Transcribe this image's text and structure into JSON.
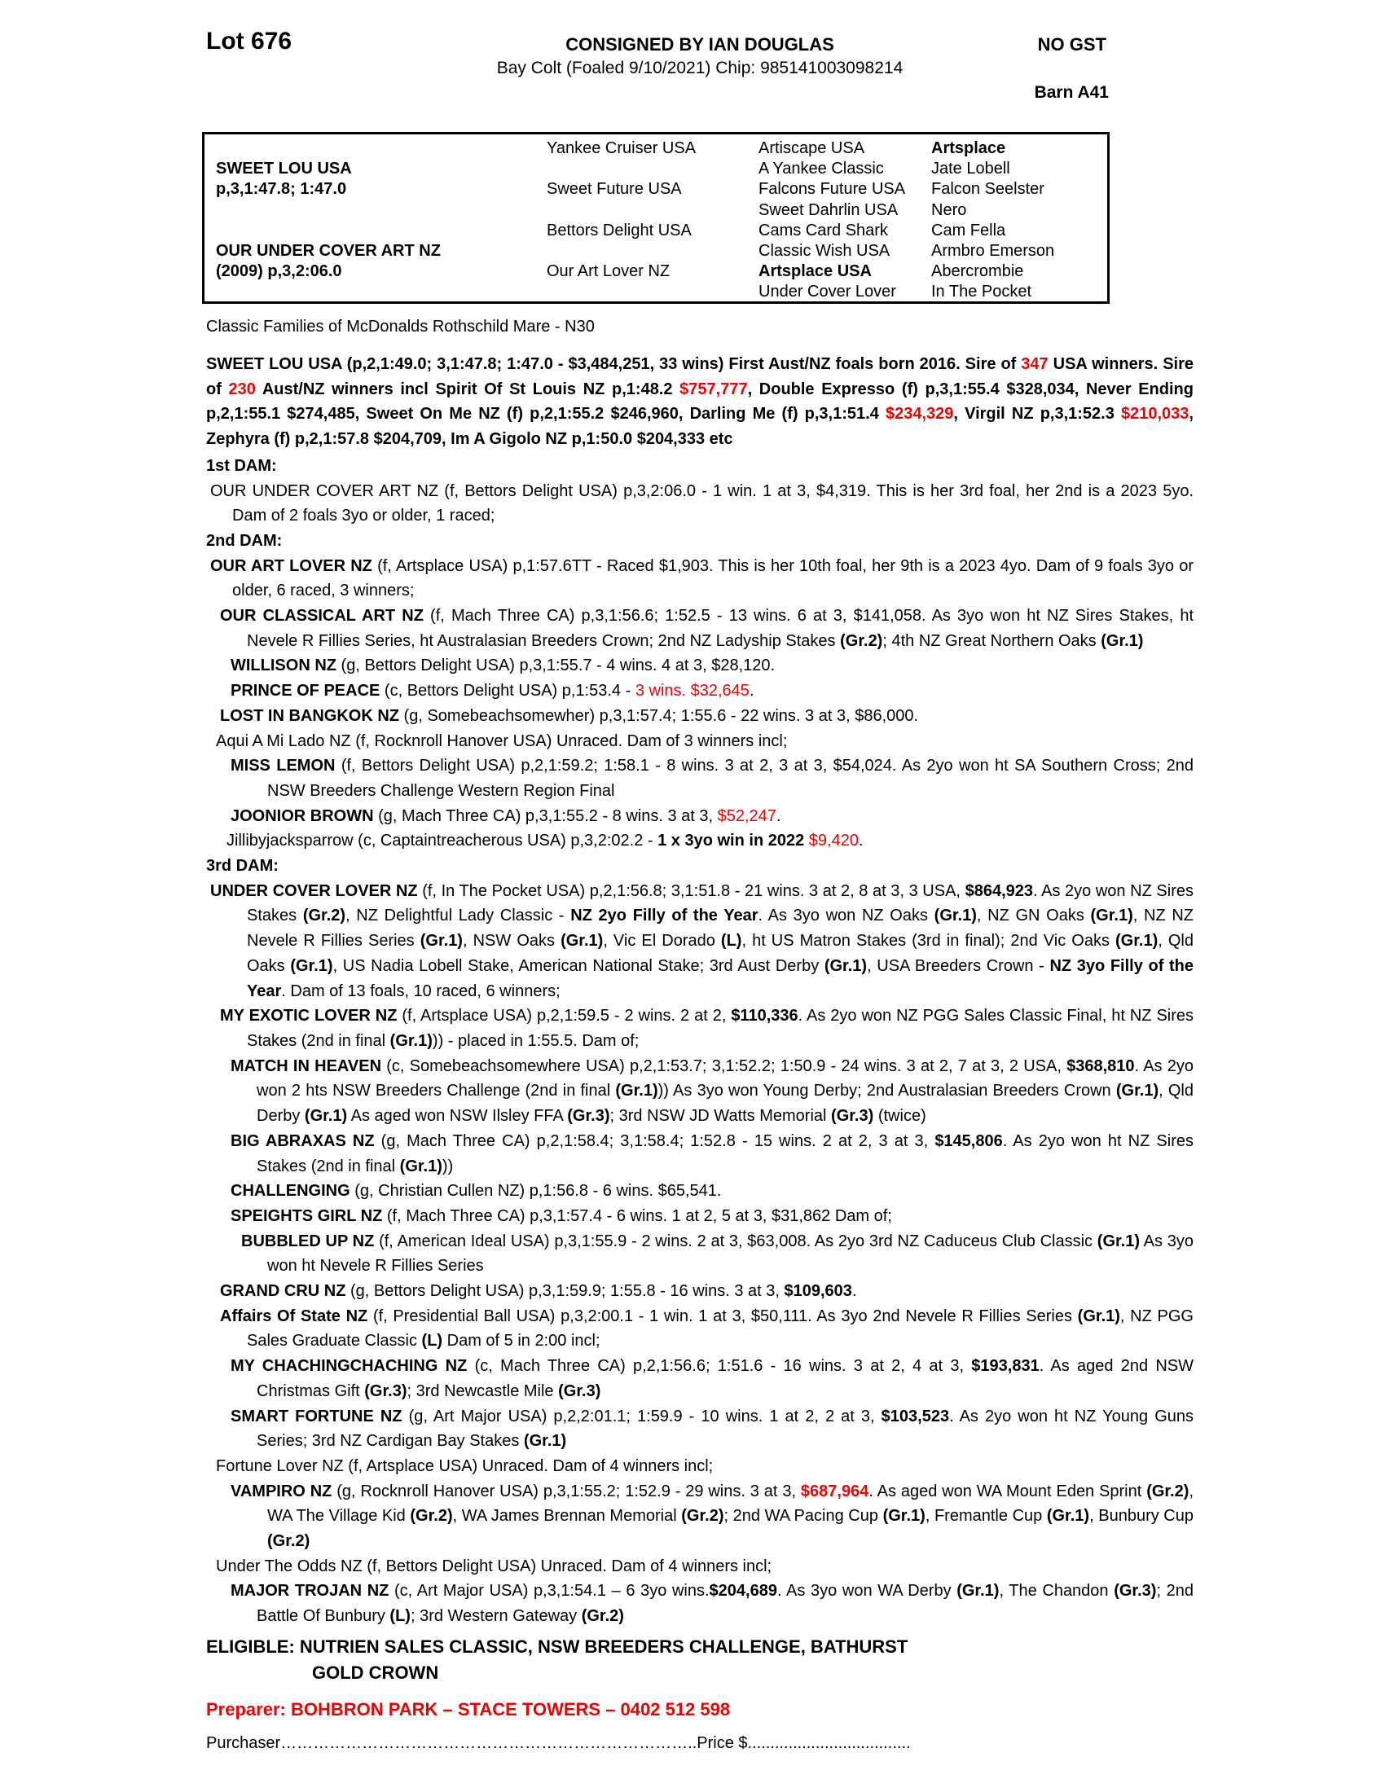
{
  "header": {
    "lot": "Lot 676",
    "consigned": "CONSIGNED BY IAN DOUGLAS",
    "no_gst": "NO GST",
    "foaling": "Bay Colt (Foaled 9/10/2021) Chip: 985141003098214",
    "barn": "Barn A41"
  },
  "pedigree_table": {
    "rows": [
      [
        {
          "t": ""
        },
        {
          "t": "Yankee Cruiser USA"
        },
        {
          "t": "Artiscape USA"
        },
        {
          "t": "Artsplace",
          "b": true
        }
      ],
      [
        {
          "t": "SWEET LOU USA",
          "b": true
        },
        {
          "t": ""
        },
        {
          "t": "A Yankee Classic"
        },
        {
          "t": "Jate Lobell"
        }
      ],
      [
        {
          "t": "p,3,1:47.8; 1:47.0",
          "b": true
        },
        {
          "t": "Sweet Future USA"
        },
        {
          "t": "Falcons Future USA"
        },
        {
          "t": "Falcon Seelster"
        }
      ],
      [
        {
          "t": ""
        },
        {
          "t": ""
        },
        {
          "t": "Sweet Dahrlin USA"
        },
        {
          "t": "Nero"
        }
      ],
      [
        {
          "t": ""
        },
        {
          "t": "Bettors Delight USA"
        },
        {
          "t": "Cams Card Shark"
        },
        {
          "t": "Cam Fella"
        }
      ],
      [
        {
          "t": "OUR UNDER COVER ART NZ",
          "b": true
        },
        {
          "t": ""
        },
        {
          "t": "Classic Wish USA"
        },
        {
          "t": "Armbro Emerson"
        }
      ],
      [
        {
          "t": "(2009) p,3,2:06.0",
          "b": true
        },
        {
          "t": "Our Art Lover NZ"
        },
        {
          "t": "Artsplace USA",
          "b": true
        },
        {
          "t": "Abercrombie"
        }
      ],
      [
        {
          "t": ""
        },
        {
          "t": ""
        },
        {
          "t": "Under Cover Lover"
        },
        {
          "t": "In The Pocket"
        }
      ]
    ]
  },
  "family_note": "Classic Families of McDonalds Rothschild Mare - N30",
  "paragraphs": [
    {
      "name": "sweet-lou-summary",
      "ind": 0,
      "hang": 0,
      "justify": true,
      "gap": 15,
      "runs": [
        {
          "t": "SWEET LOU USA (p,2,1:49.0; 3,1:47.8; 1:47.0 - $3,484,251, 33 wins) First Aust/NZ foals born 2016. Sire of ",
          "b": true
        },
        {
          "t": "347",
          "b": true,
          "r": true
        },
        {
          "t": " USA winners. Sire of ",
          "b": true
        },
        {
          "t": "230",
          "b": true,
          "r": true
        },
        {
          "t": " Aust/NZ winners incl Spirit Of St Louis NZ p,1:48.2 ",
          "b": true
        },
        {
          "t": "$757,777",
          "b": true,
          "r": true
        },
        {
          "t": ", Double Expresso (f) p,3,1:55.4 $328,034, Never Ending p,2,1:55.1 $274,485, Sweet On Me NZ (f) p,2,1:55.2 $246,960, Darling Me (f) p,3,1:51.4 ",
          "b": true
        },
        {
          "t": "$234,329",
          "b": true,
          "r": true
        },
        {
          "t": ", Virgil NZ p,3,1:52.3 ",
          "b": true
        },
        {
          "t": "$210,033",
          "b": true,
          "r": true
        },
        {
          "t": ", Zephyra (f) p,2,1:57.8 $204,709, Im A Gigolo NZ p,1:50.0 $204,333 etc",
          "b": true
        }
      ]
    },
    {
      "name": "dam-1-heading",
      "ind": 0,
      "hang": 0,
      "gap": 2,
      "runs": [
        {
          "t": "1st DAM:",
          "b": true
        }
      ]
    },
    {
      "name": "our-under-cover-art",
      "ind": 5,
      "hang": 32,
      "justify": true,
      "runs": [
        {
          "t": "OUR UNDER COVER ART NZ (f, Bettors Delight USA) p,3,2:06.0 - 1 win. 1 at 3, $4,319. This is her 3rd foal, her 2nd is a 2023 5yo. Dam of 2 foals 3yo or older, 1 raced;"
        }
      ]
    },
    {
      "name": "dam-2-heading",
      "ind": 0,
      "hang": 0,
      "runs": [
        {
          "t": "2nd DAM:",
          "b": true
        }
      ]
    },
    {
      "name": "our-art-lover",
      "ind": 5,
      "hang": 32,
      "justify": true,
      "runs": [
        {
          "t": "OUR ART LOVER NZ",
          "b": true
        },
        {
          "t": " (f, Artsplace USA) p,1:57.6TT - Raced $1,903. This is her 10th foal, her 9th is a 2023 4yo. Dam of 9 foals 3yo or older, 6 raced, 3 winners;"
        }
      ]
    },
    {
      "name": "our-classical-art",
      "ind": 17,
      "hang": 50,
      "justify": true,
      "runs": [
        {
          "t": "OUR CLASSICAL ART NZ",
          "b": true
        },
        {
          "t": " (f, Mach Three CA) p,3,1:56.6; 1:52.5 - 13 wins. 6 at 3, $141,058. As 3yo won ht NZ Sires Stakes, ht Nevele R Fillies Series, ht Australasian Breeders Crown; 2nd NZ Ladyship Stakes "
        },
        {
          "t": "(Gr.2)",
          "b": true
        },
        {
          "t": "; 4th NZ Great Northern Oaks "
        },
        {
          "t": "(Gr.1)",
          "b": true
        }
      ]
    },
    {
      "name": "willison",
      "ind": 30,
      "hang": 62,
      "runs": [
        {
          "t": "WILLISON NZ",
          "b": true
        },
        {
          "t": " (g, Bettors Delight USA) p,3,1:55.7 - 4 wins. 4 at 3, $28,120."
        }
      ]
    },
    {
      "name": "prince-of-peace",
      "ind": 30,
      "hang": 62,
      "runs": [
        {
          "t": "PRINCE OF PEACE",
          "b": true
        },
        {
          "t": " (c, Bettors Delight USA) p,1:53.4 - "
        },
        {
          "t": "3 wins. $32,645",
          "r": true
        },
        {
          "t": "."
        }
      ]
    },
    {
      "name": "lost-in-bangkok",
      "ind": 17,
      "hang": 50,
      "runs": [
        {
          "t": "LOST IN BANGKOK NZ",
          "b": true
        },
        {
          "t": " (g, Somebeachsomewher) p,3,1:57.4; 1:55.6 - 22 wins. 3 at 3, $86,000."
        }
      ]
    },
    {
      "name": "aqui-a-mi-lado",
      "ind": 12,
      "hang": 44,
      "runs": [
        {
          "t": "Aqui A Mi Lado NZ (f, Rocknroll Hanover USA) Unraced. Dam of 3 winners incl;"
        }
      ]
    },
    {
      "name": "miss-lemon",
      "ind": 30,
      "hang": 75,
      "justify": true,
      "runs": [
        {
          "t": "MISS LEMON",
          "b": true
        },
        {
          "t": " (f, Bettors Delight USA) p,2,1:59.2; 1:58.1 - 8 wins. 3 at 2, 3 at 3, $54,024. As 2yo won ht SA Southern Cross; 2nd NSW Breeders Challenge Western Region Final"
        }
      ]
    },
    {
      "name": "joonior-brown",
      "ind": 30,
      "hang": 62,
      "runs": [
        {
          "t": "JOONIOR BROWN",
          "b": true
        },
        {
          "t": " (g, Mach Three CA) p,3,1:55.2 - 8 wins. 3 at 3, "
        },
        {
          "t": "$52,247",
          "r": true
        },
        {
          "t": "."
        }
      ]
    },
    {
      "name": "jillibyjacksparrow",
      "ind": 25,
      "hang": 57,
      "runs": [
        {
          "t": "Jillibyjacksparrow (c, Captaintreacherous USA) p,3,2:02.2 - "
        },
        {
          "t": "1 x 3yo win in 2022 ",
          "b": true
        },
        {
          "t": "$9,420",
          "r": true
        },
        {
          "t": "."
        }
      ]
    },
    {
      "name": "dam-3-heading",
      "ind": 0,
      "hang": 0,
      "runs": [
        {
          "t": "3rd DAM:",
          "b": true
        }
      ]
    },
    {
      "name": "under-cover-lover",
      "ind": 5,
      "hang": 50,
      "justify": true,
      "runs": [
        {
          "t": "UNDER COVER LOVER NZ",
          "b": true
        },
        {
          "t": " (f, In The Pocket USA) p,2,1:56.8; 3,1:51.8 - 21 wins. 3 at 2, 8 at 3, 3 USA, "
        },
        {
          "t": "$864,923",
          "b": true
        },
        {
          "t": ". As 2yo won NZ Sires Stakes "
        },
        {
          "t": "(Gr.2)",
          "b": true
        },
        {
          "t": ", NZ Delightful Lady Classic - "
        },
        {
          "t": "NZ 2yo Filly of the Year",
          "b": true
        },
        {
          "t": ". As 3yo won NZ Oaks "
        },
        {
          "t": "(Gr.1)",
          "b": true
        },
        {
          "t": ", NZ GN Oaks "
        },
        {
          "t": "(Gr.1)",
          "b": true
        },
        {
          "t": ", NZ NZ Nevele R Fillies Series "
        },
        {
          "t": "(Gr.1)",
          "b": true
        },
        {
          "t": ", NSW Oaks "
        },
        {
          "t": "(Gr.1)",
          "b": true
        },
        {
          "t": ", Vic El Dorado "
        },
        {
          "t": "(L)",
          "b": true
        },
        {
          "t": ", ht US Matron Stakes (3rd in final); 2nd Vic Oaks "
        },
        {
          "t": "(Gr.1)",
          "b": true
        },
        {
          "t": ", Qld Oaks "
        },
        {
          "t": "(Gr.1)",
          "b": true
        },
        {
          "t": ", US Nadia Lobell Stake, American National Stake; 3rd Aust Derby "
        },
        {
          "t": "(Gr.1)",
          "b": true
        },
        {
          "t": ", USA Breeders Crown - "
        },
        {
          "t": "NZ 3yo Filly of the Year",
          "b": true
        },
        {
          "t": ". Dam of 13 foals, 10 raced, 6 winners;"
        }
      ]
    },
    {
      "name": "my-exotic-lover",
      "ind": 17,
      "hang": 50,
      "justify": true,
      "runs": [
        {
          "t": "MY EXOTIC LOVER NZ",
          "b": true
        },
        {
          "t": " (f, Artsplace USA) p,2,1:59.5 - 2 wins. 2 at 2, "
        },
        {
          "t": "$110,336",
          "b": true
        },
        {
          "t": ". As 2yo won NZ PGG Sales Classic Final, ht NZ Sires Stakes (2nd in final "
        },
        {
          "t": "(Gr.1)",
          "b": true
        },
        {
          "t": ")) - placed in 1:55.5. Dam of;"
        }
      ]
    },
    {
      "name": "match-in-heaven",
      "ind": 30,
      "hang": 62,
      "justify": true,
      "runs": [
        {
          "t": "MATCH IN HEAVEN",
          "b": true
        },
        {
          "t": " (c, Somebeachsomewhere USA) p,2,1:53.7; 3,1:52.2; 1:50.9 - 24 wins. 3 at 2, 7 at 3, 2 USA, "
        },
        {
          "t": "$368,810",
          "b": true
        },
        {
          "t": ". As 2yo won 2 hts NSW Breeders Challenge (2nd in final "
        },
        {
          "t": "(Gr.1)",
          "b": true
        },
        {
          "t": ")) As 3yo won Young Derby; 2nd Australasian Breeders Crown "
        },
        {
          "t": "(Gr.1)",
          "b": true
        },
        {
          "t": ", Qld Derby "
        },
        {
          "t": "(Gr.1)",
          "b": true
        },
        {
          "t": " As aged won NSW Ilsley FFA "
        },
        {
          "t": "(Gr.3)",
          "b": true
        },
        {
          "t": "; 3rd NSW JD Watts Memorial "
        },
        {
          "t": "(Gr.3)",
          "b": true
        },
        {
          "t": " (twice)"
        }
      ]
    },
    {
      "name": "big-abraxas",
      "ind": 30,
      "hang": 62,
      "justify": true,
      "runs": [
        {
          "t": "BIG ABRAXAS NZ",
          "b": true
        },
        {
          "t": " (g, Mach Three CA) p,2,1:58.4; 3,1:58.4; 1:52.8 - 15 wins. 2 at 2, 3 at 3, "
        },
        {
          "t": "$145,806",
          "b": true
        },
        {
          "t": ". As 2yo won ht NZ Sires Stakes (2nd in final "
        },
        {
          "t": "(Gr.1)",
          "b": true
        },
        {
          "t": "))"
        }
      ]
    },
    {
      "name": "challenging",
      "ind": 30,
      "hang": 62,
      "runs": [
        {
          "t": "CHALLENGING",
          "b": true
        },
        {
          "t": " (g, Christian Cullen NZ) p,1:56.8 - 6 wins. $65,541."
        }
      ]
    },
    {
      "name": "speights-girl",
      "ind": 30,
      "hang": 62,
      "runs": [
        {
          "t": "SPEIGHTS GIRL NZ",
          "b": true
        },
        {
          "t": " (f, Mach Three CA) p,3,1:57.4 - 6 wins. 1 at 2, 5 at 3, $31,862 Dam of;"
        }
      ]
    },
    {
      "name": "bubbled-up",
      "ind": 43,
      "hang": 75,
      "justify": true,
      "runs": [
        {
          "t": "BUBBLED UP NZ",
          "b": true
        },
        {
          "t": " (f, American Ideal USA) p,3,1:55.9 - 2 wins. 2 at 3, $63,008. As 2yo 3rd NZ Caduceus Club Classic "
        },
        {
          "t": "(Gr.1)",
          "b": true
        },
        {
          "t": " As 3yo won ht Nevele R Fillies Series"
        }
      ]
    },
    {
      "name": "grand-cru",
      "ind": 17,
      "hang": 50,
      "runs": [
        {
          "t": "GRAND CRU NZ",
          "b": true
        },
        {
          "t": " (g, Bettors Delight USA) p,3,1:59.9; 1:55.8 - 16 wins. 3 at 3, "
        },
        {
          "t": "$109,603",
          "b": true
        },
        {
          "t": "."
        }
      ]
    },
    {
      "name": "affairs-of-state",
      "ind": 17,
      "hang": 50,
      "justify": true,
      "runs": [
        {
          "t": "Affairs Of State NZ",
          "b": true
        },
        {
          "t": " (f, Presidential Ball USA) p,3,2:00.1 - 1 win. 1 at 3, $50,111. As 3yo 2nd Nevele R Fillies Series "
        },
        {
          "t": "(Gr.1)",
          "b": true
        },
        {
          "t": ", NZ PGG Sales Graduate Classic "
        },
        {
          "t": "(L)",
          "b": true
        },
        {
          "t": " Dam of 5 in 2:00 incl;"
        }
      ]
    },
    {
      "name": "my-chachingchaching",
      "ind": 30,
      "hang": 62,
      "justify": true,
      "runs": [
        {
          "t": "MY CHACHINGCHACHING NZ",
          "b": true
        },
        {
          "t": " (c, Mach Three CA) p,2,1:56.6; 1:51.6 - 16 wins. 3 at 2, 4 at 3, "
        },
        {
          "t": "$193,831",
          "b": true
        },
        {
          "t": ". As aged 2nd NSW Christmas Gift "
        },
        {
          "t": "(Gr.3)",
          "b": true
        },
        {
          "t": "; 3rd Newcastle Mile "
        },
        {
          "t": "(Gr.3)",
          "b": true
        }
      ]
    },
    {
      "name": "smart-fortune",
      "ind": 30,
      "hang": 62,
      "justify": true,
      "runs": [
        {
          "t": "SMART FORTUNE NZ",
          "b": true
        },
        {
          "t": " (g, Art Major USA) p,2,2:01.1; 1:59.9 - 10 wins. 1 at 2, 2 at 3, "
        },
        {
          "t": "$103,523",
          "b": true
        },
        {
          "t": ". As 2yo won ht NZ Young Guns Series; 3rd NZ Cardigan Bay Stakes "
        },
        {
          "t": "(Gr.1)",
          "b": true
        }
      ]
    },
    {
      "name": "fortune-lover",
      "ind": 12,
      "hang": 44,
      "runs": [
        {
          "t": "Fortune Lover NZ (f, Artsplace USA) Unraced. Dam of 4 winners incl;"
        }
      ]
    },
    {
      "name": "vampiro",
      "ind": 30,
      "hang": 75,
      "justify": true,
      "runs": [
        {
          "t": "VAMPIRO NZ",
          "b": true
        },
        {
          "t": " (g, Rocknroll Hanover USA) p,3,1:55.2; 1:52.9 - 29 wins. 3 at 3, "
        },
        {
          "t": "$687,964",
          "b": true,
          "r": true
        },
        {
          "t": ". As aged won WA Mount Eden Sprint "
        },
        {
          "t": "(Gr.2)",
          "b": true
        },
        {
          "t": ", WA The Village Kid "
        },
        {
          "t": "(Gr.2)",
          "b": true
        },
        {
          "t": ", WA James Brennan Memorial "
        },
        {
          "t": "(Gr.2)",
          "b": true
        },
        {
          "t": "; 2nd WA Pacing Cup "
        },
        {
          "t": "(Gr.1)",
          "b": true
        },
        {
          "t": ", Fremantle Cup "
        },
        {
          "t": "(Gr.1)",
          "b": true
        },
        {
          "t": ", Bunbury Cup "
        },
        {
          "t": "(Gr.2)",
          "b": true
        }
      ]
    },
    {
      "name": "under-the-odds",
      "ind": 12,
      "hang": 44,
      "runs": [
        {
          "t": "Under The Odds NZ (f, Bettors Delight USA) Unraced. Dam of 4 winners incl;"
        }
      ]
    },
    {
      "name": "major-trojan",
      "ind": 30,
      "hang": 62,
      "justify": true,
      "runs": [
        {
          "t": "MAJOR TROJAN NZ",
          "b": true
        },
        {
          "t": " (c, Art Major USA) p,3,1:54.1 – 6 3yo wins."
        },
        {
          "t": "$204,689",
          "b": true
        },
        {
          "t": ". As 3yo won WA Derby "
        },
        {
          "t": "(Gr.1)",
          "b": true
        },
        {
          "t": ", The Chandon "
        },
        {
          "t": "(Gr.3)",
          "b": true
        },
        {
          "t": "; 2nd Battle Of Bunbury "
        },
        {
          "t": "(L)",
          "b": true
        },
        {
          "t": "; 3rd Western Gateway "
        },
        {
          "t": "(Gr.2)",
          "b": true
        }
      ]
    }
  ],
  "eligible": {
    "line1": "ELIGIBLE: NUTRIEN SALES CLASSIC, NSW BREEDERS CHALLENGE, BATHURST",
    "line2": "GOLD CROWN"
  },
  "preparer": "Preparer: BOHBRON PARK – STACE TOWERS – 0402 512 598",
  "purchaser_line": "Purchaser…………………………………………………………………..Price $...................................."
}
